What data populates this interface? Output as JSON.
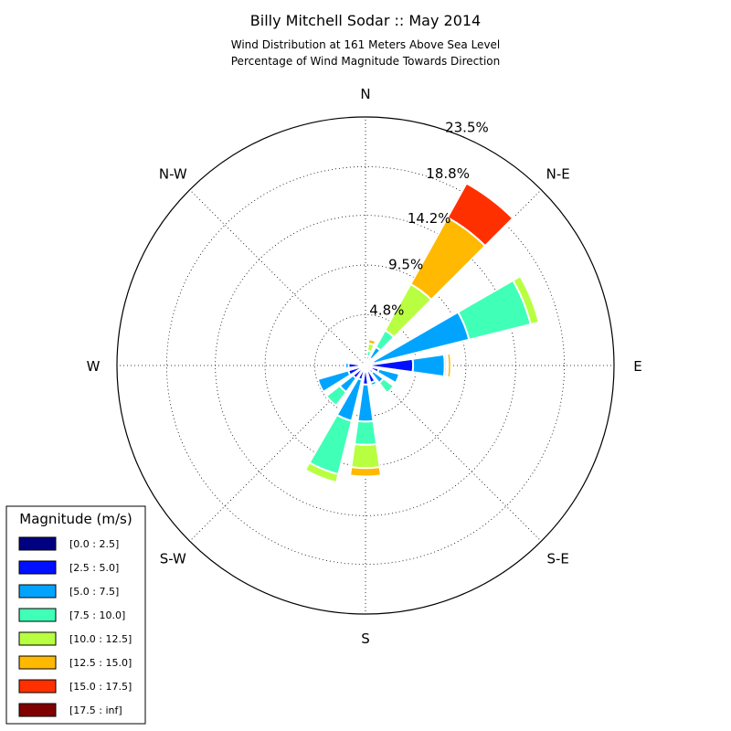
{
  "chart_data": {
    "type": "windrose",
    "title": "Billy Mitchell Sodar :: May 2014",
    "subtitle_lines": [
      "Wind Distribution at 161 Meters Above Sea Level",
      "Percentage of Wind Magnitude Towards Direction"
    ],
    "directions": [
      "N",
      "N-E",
      "E",
      "S-E",
      "S",
      "S-W",
      "W",
      "N-W"
    ],
    "ring_labels": [
      "4.8%",
      "9.5%",
      "14.2%",
      "18.8%",
      "23.5%"
    ],
    "rmax": 23.5,
    "bin_degrees": 16,
    "legend": {
      "title": "Magnitude (m/s)",
      "items": [
        "[0.0 : 2.5]",
        "[2.5 : 5.0]",
        "[5.0 : 7.5]",
        "[7.5 : 10.0]",
        "[10.0 : 12.5]",
        "[12.5 : 15.0]",
        "[15.0 : 17.5]",
        "[17.5 : inf]"
      ],
      "colors": [
        "#000080",
        "#0010ff",
        "#00a4ff",
        "#40ffb7",
        "#b7ff40",
        "#ffb900",
        "#ff3000",
        "#800000"
      ]
    },
    "sectors": [
      {
        "direction_deg": 15,
        "values": [
          0.1,
          0.2,
          0.6,
          0.5,
          0.7,
          0.4,
          0,
          0
        ]
      },
      {
        "direction_deg": 37,
        "values": [
          0.2,
          0.6,
          1.2,
          1.8,
          5.0,
          7.2,
          3.7,
          0
        ]
      },
      {
        "direction_deg": 68,
        "values": [
          0.2,
          0.6,
          9.3,
          6.0,
          0.8,
          0,
          0,
          0
        ]
      },
      {
        "direction_deg": 90,
        "values": [
          0.2,
          4.3,
          3.0,
          0.2,
          0.1,
          0.3,
          0,
          0
        ]
      },
      {
        "direction_deg": 112,
        "values": [
          0.3,
          1.0,
          2.0,
          0,
          0,
          0,
          0,
          0
        ]
      },
      {
        "direction_deg": 134,
        "values": [
          0.3,
          0.6,
          1.2,
          1.2,
          0,
          0,
          0,
          0
        ]
      },
      {
        "direction_deg": 156,
        "values": [
          0.3,
          1.4,
          0.3,
          0.2,
          0.1,
          0,
          0,
          0
        ]
      },
      {
        "direction_deg": 180,
        "values": [
          0.5,
          1.3,
          3.5,
          2.2,
          2.2,
          0.8,
          0,
          0
        ]
      },
      {
        "direction_deg": 202,
        "values": [
          0.2,
          1.2,
          4.0,
          5.2,
          0.8,
          0,
          0,
          0
        ]
      },
      {
        "direction_deg": 224,
        "values": [
          0.3,
          1.2,
          1.6,
          1.6,
          0,
          0,
          0,
          0
        ]
      },
      {
        "direction_deg": 246,
        "values": [
          0.2,
          1.5,
          3.0,
          0,
          0,
          0,
          0,
          0
        ]
      },
      {
        "direction_deg": 270,
        "values": [
          0.6,
          1.0,
          0.3,
          0,
          0,
          0,
          0,
          0
        ]
      },
      {
        "direction_deg": 292,
        "values": [
          0.2,
          0.4,
          0,
          0,
          0,
          0,
          0,
          0
        ]
      },
      {
        "direction_deg": 338,
        "values": [
          0.1,
          0.1,
          0,
          0,
          0,
          0,
          0,
          0
        ]
      }
    ]
  }
}
